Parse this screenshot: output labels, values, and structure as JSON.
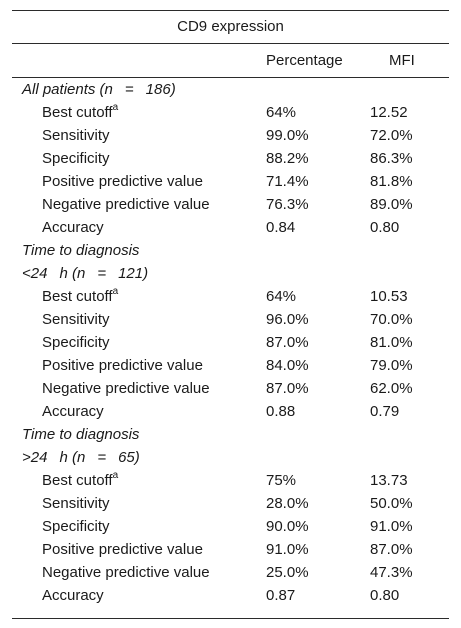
{
  "table": {
    "caption": "CD9 expression",
    "columns": [
      "Percentage",
      "MFI"
    ],
    "groups": [
      {
        "headers": [
          "All patients (n    =    186)"
        ],
        "rows": [
          {
            "label": "Best cutoff",
            "sup": "a",
            "percentage": "64%",
            "mfi": "12.52"
          },
          {
            "label": "Sensitivity",
            "percentage": "99.0%",
            "mfi": "72.0%"
          },
          {
            "label": "Specificity",
            "percentage": "88.2%",
            "mfi": "86.3%"
          },
          {
            "label": "Positive predictive value",
            "percentage": "71.4%",
            "mfi": "81.8%"
          },
          {
            "label": "Negative predictive value",
            "percentage": "76.3%",
            "mfi": "89.0%"
          },
          {
            "label": "Accuracy",
            "percentage": "0.84",
            "mfi": "0.80"
          }
        ]
      },
      {
        "headers": [
          "Time to diagnosis",
          "<24    h (n    =    121)"
        ],
        "rows": [
          {
            "label": "Best cutoff",
            "sup": "a",
            "percentage": "64%",
            "mfi": "10.53"
          },
          {
            "label": "Sensitivity",
            "percentage": "96.0%",
            "mfi": "70.0%"
          },
          {
            "label": "Specificity",
            "percentage": "87.0%",
            "mfi": "81.0%"
          },
          {
            "label": "Positive predictive value",
            "percentage": "84.0%",
            "mfi": "79.0%"
          },
          {
            "label": "Negative predictive value",
            "percentage": "87.0%",
            "mfi": "62.0%"
          },
          {
            "label": "Accuracy",
            "percentage": "0.88",
            "mfi": "0.79"
          }
        ]
      },
      {
        "headers": [
          "Time to diagnosis",
          ">24    h (n    =    65)"
        ],
        "rows": [
          {
            "label": "Best cutoff",
            "sup": "a",
            "percentage": "75%",
            "mfi": "13.73"
          },
          {
            "label": "Sensitivity",
            "percentage": "28.0%",
            "mfi": "50.0%"
          },
          {
            "label": "Specificity",
            "percentage": "90.0%",
            "mfi": "91.0%"
          },
          {
            "label": "Positive predictive value",
            "percentage": "91.0%",
            "mfi": "87.0%"
          },
          {
            "label": "Negative predictive value",
            "percentage": "25.0%",
            "mfi": "47.3%"
          },
          {
            "label": "Accuracy",
            "percentage": "0.87",
            "mfi": "0.80"
          }
        ]
      }
    ]
  }
}
